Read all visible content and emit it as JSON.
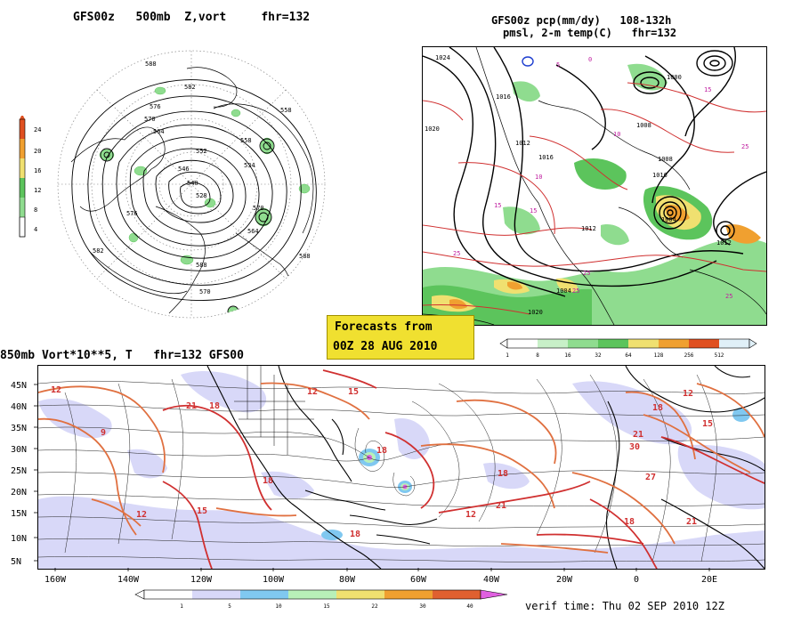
{
  "panel_polar": {
    "title": "GFS00z   500mb  Z,vort     fhr=132",
    "legend": {
      "ticks": [
        "24",
        "20",
        "16",
        "12",
        "8",
        "4"
      ],
      "colors": [
        "#ffffff",
        "#5cc45c",
        "#8fdc8f",
        "#c8f0c8",
        "#f0e070",
        "#f0a030",
        "#e05020"
      ]
    },
    "contour_labels": [
      "588",
      "582",
      "576",
      "570",
      "564",
      "558",
      "552",
      "546",
      "540",
      "534",
      "528",
      "582",
      "576",
      "570",
      "564",
      "558",
      "588",
      "570",
      "588"
    ]
  },
  "panel_precip": {
    "title_line1": "GFS00z pcp(mm/dy)   108-132h",
    "title_line2": "pmsl, 2-m temp(C)   fhr=132",
    "isobar_labels": [
      "1024",
      "1016",
      "1012",
      "1008",
      "1004",
      "1000",
      "1020",
      "1016",
      "1012",
      "1008",
      "1004",
      "1020",
      "1012",
      "1016"
    ],
    "temp_labels": [
      "25",
      "15",
      "10",
      "5",
      "0",
      "25",
      "15",
      "10",
      "25",
      "25",
      "25",
      "15"
    ],
    "legend": {
      "ticks": [
        "1",
        "8",
        "16",
        "32",
        "64",
        "128",
        "256",
        "512"
      ],
      "colors": [
        "#ffffff",
        "#c8f0c8",
        "#8fdc8f",
        "#5cc45c",
        "#f0e070",
        "#f0a030",
        "#e05020",
        "#e0f0f8"
      ]
    }
  },
  "forecast_box": {
    "line1": "Forecasts from",
    "line2": "00Z 28 AUG 2010"
  },
  "panel_vort": {
    "title": "850mb Vort*10**5, T   fhr=132 GFS00",
    "lat_labels": [
      "45N",
      "40N",
      "35N",
      "30N",
      "25N",
      "20N",
      "15N",
      "10N",
      "5N"
    ],
    "lon_labels": [
      "160W",
      "140W",
      "120W",
      "100W",
      "80W",
      "60W",
      "40W",
      "20W",
      "0",
      "20E"
    ],
    "temp_labels": [
      "12",
      "18",
      "21",
      "15",
      "18",
      "12",
      "15",
      "18",
      "18",
      "21",
      "18",
      "12",
      "18",
      "21",
      "27",
      "30",
      "12",
      "15",
      "21",
      "18",
      "9",
      "12"
    ],
    "legend": {
      "ticks": [
        "1",
        "5",
        "10",
        "15",
        "22",
        "30",
        "40"
      ],
      "colors": [
        "#ffffff",
        "#d8d8f8",
        "#80c8f0",
        "#b8f0b8",
        "#f0e070",
        "#f0a030",
        "#e06030",
        "#e060e0"
      ]
    }
  },
  "verif_time": "verif time: Thu 02 SEP 2010 12Z"
}
